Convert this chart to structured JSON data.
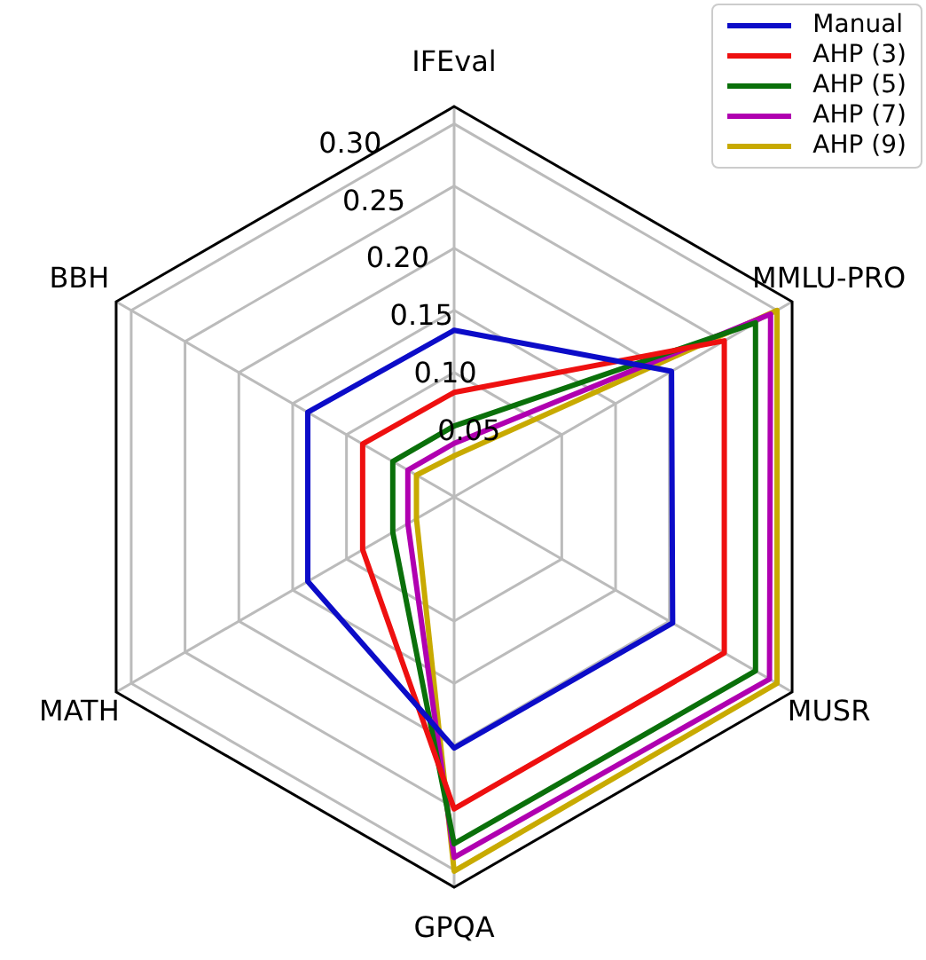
{
  "chart_data": {
    "type": "radar",
    "categories": [
      "IFEval",
      "MMLU-PRO",
      "MUSR",
      "GPQA",
      "MATH",
      "BBH"
    ],
    "series": [
      {
        "name": "Manual",
        "color": "#0c0cc8",
        "values": [
          0.134,
          0.202,
          0.203,
          0.202,
          0.136,
          0.136
        ]
      },
      {
        "name": "AHP (3)",
        "color": "#ee1010",
        "values": [
          0.084,
          0.251,
          0.251,
          0.251,
          0.085,
          0.085
        ]
      },
      {
        "name": "AHP (5)",
        "color": "#0a700a",
        "values": [
          0.057,
          0.28,
          0.28,
          0.279,
          0.057,
          0.057
        ]
      },
      {
        "name": "AHP (7)",
        "color": "#b000b0",
        "values": [
          0.043,
          0.294,
          0.293,
          0.29,
          0.043,
          0.043
        ]
      },
      {
        "name": "AHP (9)",
        "color": "#c8aa00",
        "values": [
          0.033,
          0.3,
          0.3,
          0.301,
          0.035,
          0.035
        ]
      }
    ],
    "ylim": [
      0,
      0.314
    ],
    "yticks": [
      0.05,
      {
        "value": 0.1,
        "label": "0.10"
      },
      0.15,
      {
        "value": 0.2,
        "label": "0.20"
      },
      0.25,
      {
        "value": 0.3,
        "label": "0.30"
      }
    ],
    "grid": true,
    "legend": "top right",
    "marker": "none",
    "line_style": "solid"
  }
}
